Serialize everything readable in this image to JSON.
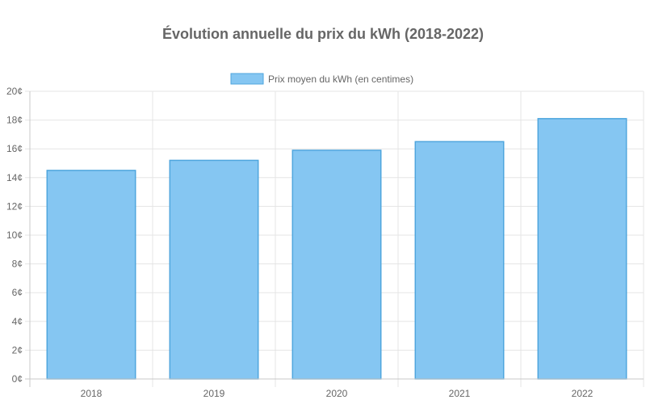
{
  "chart_data": {
    "type": "bar",
    "title": "Évolution annuelle du prix du kWh (2018-2022)",
    "categories": [
      "2018",
      "2019",
      "2020",
      "2021",
      "2022"
    ],
    "series": [
      {
        "name": "Prix moyen du kWh (en centimes)",
        "values": [
          14.5,
          15.2,
          15.9,
          16.5,
          18.1
        ]
      }
    ],
    "ylim": [
      0,
      20
    ],
    "y_ticks": [
      "0¢",
      "2¢",
      "4¢",
      "6¢",
      "8¢",
      "10¢",
      "12¢",
      "14¢",
      "16¢",
      "18¢",
      "20¢"
    ],
    "grid": true,
    "legend_position": "top",
    "colors": {
      "bar_fill": "#85C6F2",
      "bar_stroke": "#4FA6DE",
      "grid": "#E5E5E5",
      "axis": "#C8C8C8",
      "text": "#666666"
    }
  }
}
